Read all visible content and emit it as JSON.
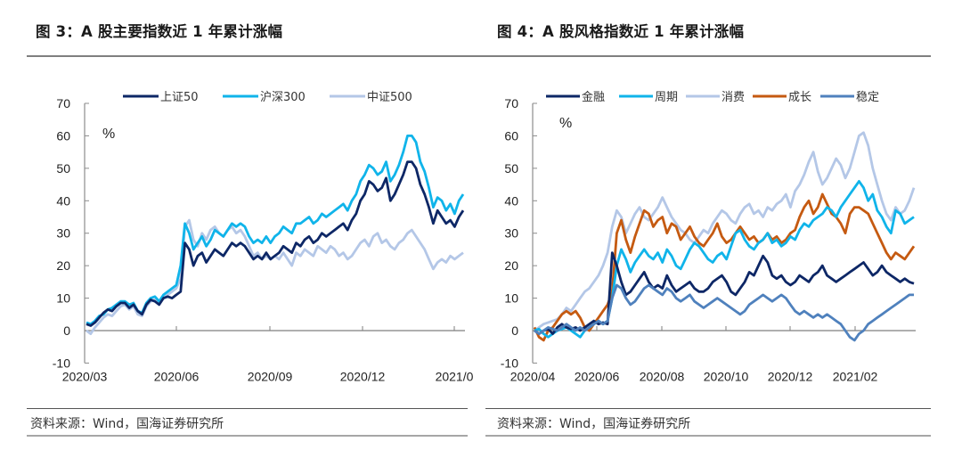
{
  "figures": [
    {
      "title": "图 3：A 股主要指数近 1 年累计涨幅",
      "source": "资料来源：Wind，国海证券研究所"
    },
    {
      "title": "图 4：A 股风格指数近 1 年累计涨幅",
      "source": "资料来源：Wind，国海证券研究所"
    }
  ],
  "chart_data": [
    {
      "type": "line",
      "title": "图 3：A 股主要指数近 1 年累计涨幅",
      "xlabel": "",
      "ylabel": "%",
      "ylim": [
        -10,
        70
      ],
      "yticks": [
        -10,
        0,
        10,
        20,
        30,
        40,
        50,
        60,
        70
      ],
      "xticks": [
        "2020/03",
        "2020/06",
        "2020/09",
        "2020/12",
        "2021/0"
      ],
      "x_range_note": "time from 2020/03 to ~2021/03",
      "legend_position": "top",
      "grid": false,
      "series": [
        {
          "name": "上证50",
          "color": "#0d2766",
          "values": [
            2,
            1.5,
            2.5,
            4,
            5.5,
            6.5,
            6,
            7.5,
            8.5,
            8.5,
            7,
            8,
            6,
            5,
            8,
            9.5,
            9,
            8,
            10,
            10.5,
            10,
            11,
            12,
            27,
            25,
            20,
            23,
            24,
            21,
            23,
            25,
            24,
            23,
            25,
            27,
            26,
            27,
            26,
            24,
            22,
            23,
            22,
            24,
            22,
            23,
            24,
            26,
            25,
            24,
            27,
            26,
            28,
            29,
            27,
            28,
            30,
            29,
            30,
            31,
            32,
            33,
            31,
            34,
            36,
            40,
            42,
            46,
            45,
            43,
            44,
            47,
            40,
            42,
            45,
            48,
            52,
            52,
            50,
            45,
            42,
            38,
            33,
            37,
            35,
            33,
            34,
            32,
            35,
            37
          ],
          "end_value": 37
        },
        {
          "name": "沪深300",
          "color": "#10b4ea",
          "values": [
            2.5,
            2,
            3,
            4.5,
            5,
            6.5,
            7,
            8,
            9,
            9,
            8,
            8.5,
            6,
            5.5,
            8.5,
            10,
            10.5,
            9,
            11,
            12,
            13,
            14,
            20,
            33,
            30,
            25,
            27,
            29,
            26,
            28,
            31,
            30,
            29,
            31,
            33,
            32,
            33,
            32,
            29,
            27,
            28,
            27,
            29,
            27,
            29,
            30,
            32,
            31,
            30,
            33,
            33,
            34,
            35,
            33,
            34,
            36,
            35,
            36,
            37,
            38,
            39,
            37,
            40,
            42,
            46,
            48,
            51,
            50,
            48,
            49,
            52,
            46,
            48,
            51,
            55,
            60,
            60,
            58,
            52,
            49,
            44,
            38,
            41,
            40,
            37,
            39,
            36,
            40,
            42
          ],
          "end_value": 42
        },
        {
          "name": "中证500",
          "color": "#b4c7e7",
          "values": [
            0,
            -1,
            1,
            2.5,
            4,
            5,
            4.5,
            6,
            7.5,
            8,
            6.5,
            7.5,
            5,
            4.5,
            7.5,
            9,
            9.5,
            8.5,
            10,
            11,
            12,
            13,
            16,
            32,
            34,
            28,
            26,
            30,
            28,
            31,
            32,
            30,
            29,
            31,
            32,
            30,
            31,
            29,
            26,
            23,
            24,
            22,
            23,
            22,
            23,
            22,
            24,
            22,
            20,
            24,
            23,
            25,
            24,
            23,
            26,
            25,
            24,
            26,
            25,
            23,
            24,
            22,
            23,
            25,
            27,
            28,
            26,
            29,
            30,
            27,
            28,
            26,
            25,
            27,
            28,
            30,
            31,
            29,
            27,
            25,
            22,
            19,
            21,
            22,
            21,
            23,
            22,
            23,
            24
          ],
          "end_value": 24
        }
      ]
    },
    {
      "type": "line",
      "title": "图 4：A 股风格指数近 1 年累计涨幅",
      "xlabel": "",
      "ylabel": "%",
      "ylim": [
        -10,
        70
      ],
      "yticks": [
        -10,
        0,
        10,
        20,
        30,
        40,
        50,
        60,
        70
      ],
      "xticks": [
        "2020/04",
        "2020/06",
        "2020/08",
        "2020/10",
        "2020/12",
        "2021/02"
      ],
      "x_range_note": "time from 2020/04 to ~2021/03",
      "legend_position": "top",
      "grid": false,
      "series": [
        {
          "name": "金融",
          "color": "#0d2766",
          "values": [
            0,
            -1,
            0,
            0.5,
            -1,
            1,
            2,
            1,
            0.5,
            1,
            0,
            1,
            2,
            3,
            2,
            2.5,
            2,
            24,
            20,
            15,
            11,
            12,
            14,
            16,
            18,
            15,
            13,
            14,
            13,
            17,
            14,
            12,
            13,
            14,
            15,
            13,
            12,
            12,
            13,
            15,
            16,
            17,
            15,
            12,
            11,
            13,
            15,
            18,
            17,
            20,
            23,
            21,
            17,
            16,
            17,
            15,
            14,
            15,
            17,
            16,
            15,
            17,
            18,
            20,
            17,
            16,
            15,
            16,
            17,
            18,
            19,
            20,
            21,
            19,
            17,
            18,
            20,
            18,
            17,
            16,
            15,
            16,
            15,
            14.5
          ],
          "end_value": 14.5
        },
        {
          "name": "周期",
          "color": "#10b4ea",
          "values": [
            0,
            0.5,
            -1,
            -2,
            -1,
            0,
            0.5,
            1,
            0,
            -1,
            -2,
            0,
            1,
            2,
            3,
            2,
            3,
            10,
            20,
            25,
            22,
            18,
            21,
            23,
            25,
            23,
            22,
            24,
            21,
            25,
            23,
            20,
            19,
            22,
            25,
            27,
            26,
            24,
            22,
            21,
            23,
            24,
            22,
            26,
            30,
            31,
            28,
            26,
            25,
            27,
            28,
            30,
            27,
            28,
            26,
            27,
            29,
            28,
            31,
            33,
            32,
            34,
            35,
            36,
            38,
            37,
            35,
            38,
            40,
            42,
            44,
            46,
            44,
            40,
            42,
            37,
            35,
            32,
            30,
            37,
            36,
            33,
            34,
            35
          ],
          "end_value": 35
        },
        {
          "name": "消费",
          "color": "#b4c7e7",
          "values": [
            0,
            1,
            2,
            2.5,
            3,
            3.5,
            5,
            7,
            6,
            8,
            10,
            12,
            13,
            15,
            17,
            20,
            24,
            32,
            37,
            35,
            30,
            33,
            36,
            38,
            35,
            34,
            36,
            38,
            41,
            38,
            35,
            33,
            31,
            30,
            28,
            27,
            29,
            31,
            30,
            33,
            35,
            37,
            36,
            34,
            33,
            36,
            38,
            39,
            36,
            37,
            35,
            38,
            37,
            39,
            40,
            42,
            38,
            43,
            45,
            48,
            52,
            55,
            49,
            45,
            47,
            50,
            53,
            51,
            47,
            50,
            55,
            60,
            61,
            57,
            50,
            45,
            40,
            36,
            34,
            38,
            36,
            37,
            40,
            44
          ],
          "end_value": 44
        },
        {
          "name": "成长",
          "color": "#c55a11",
          "values": [
            1,
            -2,
            -3,
            0,
            1,
            3,
            5,
            6,
            5,
            6,
            4,
            1,
            0,
            2,
            4,
            6,
            8,
            12,
            30,
            34,
            28,
            24,
            29,
            33,
            37,
            36,
            32,
            34,
            35,
            30,
            33,
            32,
            28,
            30,
            32,
            29,
            27,
            26,
            28,
            30,
            33,
            29,
            27,
            28,
            30,
            32,
            30,
            28,
            29,
            27,
            28,
            30,
            28,
            29,
            27,
            28,
            30,
            31,
            35,
            38,
            40,
            36,
            38,
            42,
            39,
            36,
            35,
            33,
            30,
            36,
            38,
            38,
            37,
            36,
            33,
            30,
            27,
            24,
            22,
            24,
            23,
            22,
            24,
            26
          ],
          "end_value": 26
        },
        {
          "name": "稳定",
          "color": "#4f81bd",
          "values": [
            0,
            -1,
            0,
            1,
            0.5,
            0,
            1,
            2,
            1,
            0,
            1,
            0,
            1,
            2,
            3,
            2,
            3,
            10,
            14,
            13,
            10,
            8,
            9,
            11,
            13,
            14,
            13,
            12,
            11,
            13,
            12,
            10,
            9,
            10,
            11,
            9,
            8,
            7,
            8,
            9,
            10,
            9,
            8,
            7,
            6,
            5,
            6,
            8,
            9,
            10,
            11,
            10,
            9,
            10,
            11,
            10,
            8,
            6,
            5,
            6,
            5,
            4,
            5,
            4,
            5,
            4,
            3,
            2,
            0,
            -2,
            -3,
            -1,
            0,
            2,
            3,
            4,
            5,
            6,
            7,
            8,
            9,
            10,
            11,
            11
          ],
          "end_value": 11
        }
      ]
    }
  ]
}
